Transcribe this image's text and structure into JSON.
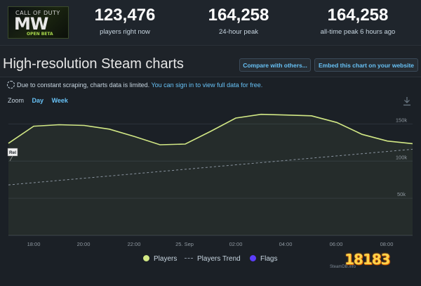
{
  "game": {
    "thumbnail_top": "CALL OF DUTY",
    "thumbnail_main": "MW",
    "thumbnail_sub": "OPEN BETA"
  },
  "stats": [
    {
      "value": "123,476",
      "label": "players right now"
    },
    {
      "value": "164,258",
      "label": "24-hour peak"
    },
    {
      "value": "164,258",
      "label": "all-time peak 6 hours ago"
    }
  ],
  "heading": "High-resolution Steam charts",
  "buttons": {
    "compare": "Compare with others...",
    "embed": "Embed this chart on your website"
  },
  "notice": {
    "text": "Due to constant scraping, charts data is limited. ",
    "link": "You can sign in to view full data for free."
  },
  "zoom": {
    "label": "Zoom",
    "options": [
      "Day",
      "Week"
    ]
  },
  "chart_data": {
    "type": "line",
    "x_ticks": [
      "18:00",
      "20:00",
      "22:00",
      "25. Sep",
      "02:00",
      "04:00",
      "06:00",
      "08:00"
    ],
    "y_ticks": [
      "150k",
      "100k",
      "50k"
    ],
    "ylim": [
      0,
      175000
    ],
    "series": [
      {
        "name": "Players",
        "color": "#d2e885",
        "values": [
          124000,
          147000,
          149000,
          148000,
          143000,
          133000,
          122000,
          123000,
          140000,
          158000,
          163000,
          162000,
          161000,
          152000,
          136000,
          127000,
          123500
        ]
      },
      {
        "name": "Players Trend",
        "color": "#8a94a0",
        "values": [
          68000,
          116000
        ]
      }
    ],
    "annotations": [
      {
        "label": "Rel"
      }
    ]
  },
  "legend": [
    {
      "label": "Players",
      "color": "#d2e885"
    },
    {
      "label": "Players Trend",
      "color": "#8a94a0"
    },
    {
      "label": "Flags",
      "color": "#5c3dfa"
    }
  ],
  "credit": "SteamDB.info",
  "watermark": "18183"
}
